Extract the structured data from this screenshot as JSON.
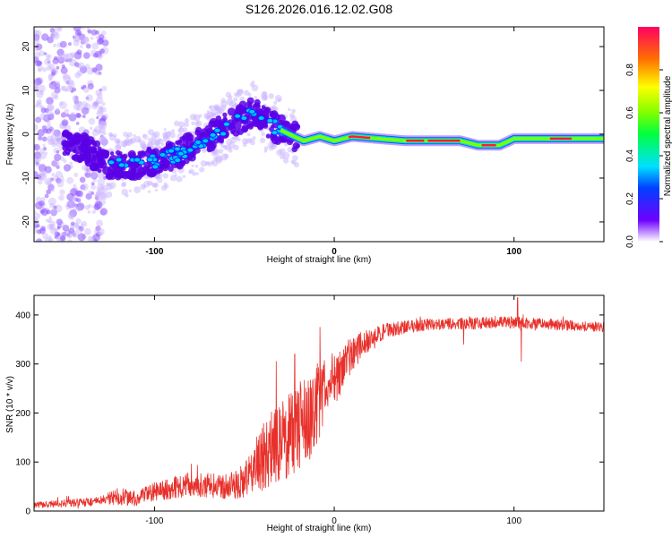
{
  "title": "S126.2026.016.12.02.G08",
  "colors": {
    "signal": "#e8302a",
    "scatter_strong": "#5a00e6",
    "scatter_weak": "#c9b3ff"
  },
  "chart_data": [
    {
      "type": "heatmap",
      "name": "spectrogram",
      "xlabel": "Height of straight line (km)",
      "ylabel": "Frequency (Hz)",
      "xlim": [
        -167,
        150
      ],
      "ylim": [
        -24.5,
        24.5
      ],
      "xticks": [
        {
          "value": -100,
          "label": "-100"
        },
        {
          "value": 0,
          "label": "0"
        },
        {
          "value": 100,
          "label": "100"
        }
      ],
      "yticks": [
        {
          "value": 20,
          "label": "20"
        },
        {
          "value": 10,
          "label": "10"
        },
        {
          "value": 0,
          "label": "0"
        },
        {
          "value": -10,
          "label": "-10"
        },
        {
          "value": -20,
          "label": "-20"
        }
      ],
      "ridge": [
        {
          "x": -167,
          "f": -1
        },
        {
          "x": -140,
          "f": -3
        },
        {
          "x": -125,
          "f": -7
        },
        {
          "x": -110,
          "f": -7
        },
        {
          "x": -90,
          "f": -5
        },
        {
          "x": -75,
          "f": -2
        },
        {
          "x": -60,
          "f": 2
        },
        {
          "x": -45,
          "f": 5
        },
        {
          "x": -35,
          "f": 2
        },
        {
          "x": -25,
          "f": 0
        },
        {
          "x": -17,
          "f": -1.5
        },
        {
          "x": -8,
          "f": -0.5
        },
        {
          "x": 0,
          "f": -1.5
        },
        {
          "x": 10,
          "f": -0.5
        },
        {
          "x": 40,
          "f": -1.5
        },
        {
          "x": 70,
          "f": -1.5
        },
        {
          "x": 80,
          "f": -2.5
        },
        {
          "x": 92,
          "f": -2.5
        },
        {
          "x": 100,
          "f": -1
        },
        {
          "x": 150,
          "f": -1
        }
      ],
      "colorbar": {
        "label": "Normalized spectral amplitude",
        "range": [
          0,
          1
        ],
        "ticks": [
          {
            "value": 0.0,
            "label": "0.0"
          },
          {
            "value": 0.2,
            "label": "0.2"
          },
          {
            "value": 0.4,
            "label": "0.4"
          },
          {
            "value": 0.6,
            "label": "0.6"
          },
          {
            "value": 0.8,
            "label": "0.8"
          }
        ]
      }
    },
    {
      "type": "line",
      "name": "snr",
      "xlabel": "Height of straight line (km)",
      "ylabel": "SNR (10 * v/v)",
      "xlim": [
        -167,
        150
      ],
      "ylim": [
        0,
        440
      ],
      "xticks": [
        {
          "value": -100,
          "label": "-100"
        },
        {
          "value": 0,
          "label": "0"
        },
        {
          "value": 100,
          "label": "100"
        }
      ],
      "yticks": [
        {
          "value": 0,
          "label": "0"
        },
        {
          "value": 100,
          "label": "100"
        },
        {
          "value": 200,
          "label": "200"
        },
        {
          "value": 300,
          "label": "300"
        },
        {
          "value": 400,
          "label": "400"
        }
      ],
      "series": [
        {
          "name": "SNR",
          "envelope": [
            {
              "x": -167,
              "mean": 12,
              "noise": 6
            },
            {
              "x": -130,
              "mean": 20,
              "noise": 10
            },
            {
              "x": -120,
              "mean": 30,
              "noise": 18
            },
            {
              "x": -110,
              "mean": 25,
              "noise": 15
            },
            {
              "x": -100,
              "mean": 40,
              "noise": 20
            },
            {
              "x": -80,
              "mean": 55,
              "noise": 25
            },
            {
              "x": -60,
              "mean": 50,
              "noise": 25
            },
            {
              "x": -50,
              "mean": 60,
              "noise": 35
            },
            {
              "x": -40,
              "mean": 110,
              "noise": 70
            },
            {
              "x": -30,
              "mean": 140,
              "noise": 90
            },
            {
              "x": -20,
              "mean": 170,
              "noise": 90
            },
            {
              "x": -12,
              "mean": 200,
              "noise": 90
            },
            {
              "x": -5,
              "mean": 250,
              "noise": 70
            },
            {
              "x": 5,
              "mean": 300,
              "noise": 45
            },
            {
              "x": 15,
              "mean": 340,
              "noise": 25
            },
            {
              "x": 30,
              "mean": 370,
              "noise": 15
            },
            {
              "x": 50,
              "mean": 380,
              "noise": 12
            },
            {
              "x": 100,
              "mean": 385,
              "noise": 12
            },
            {
              "x": 150,
              "mean": 375,
              "noise": 10
            }
          ],
          "spikes": [
            {
              "x": -8,
              "y": 375
            },
            {
              "x": -22,
              "y": 320
            },
            {
              "x": 102,
              "y": 435
            },
            {
              "x": 104,
              "y": 305
            },
            {
              "x": 72,
              "y": 340
            }
          ]
        }
      ]
    }
  ]
}
